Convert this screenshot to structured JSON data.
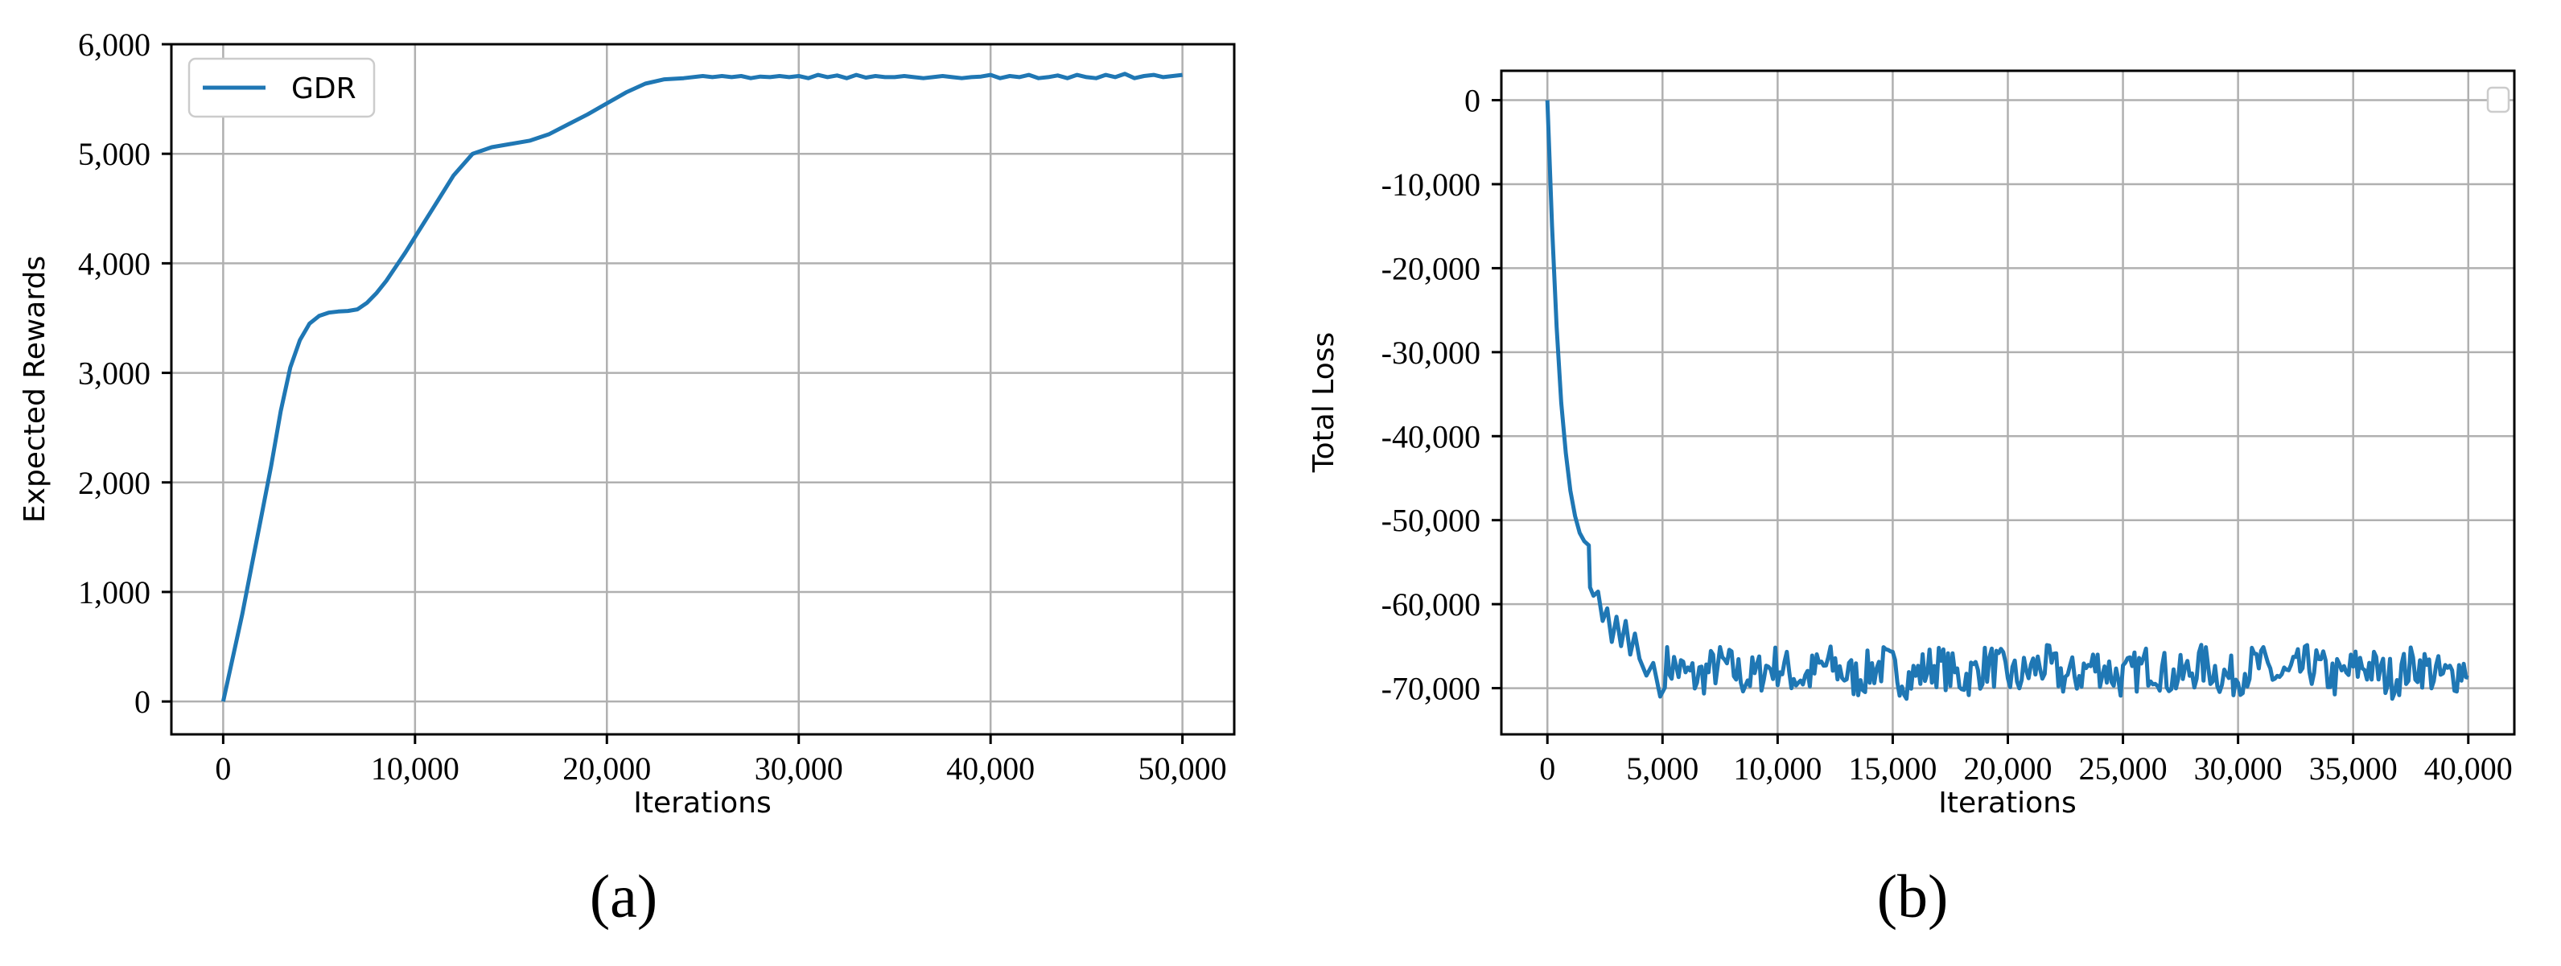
{
  "chart_data": [
    {
      "type": "line",
      "panel_label": "(a)",
      "xlabel": "Iterations",
      "ylabel": "Expected Rewards",
      "xlim": [
        -2700,
        52700
      ],
      "ylim": [
        -300,
        6000
      ],
      "xticks": [
        0,
        10000,
        20000,
        30000,
        40000,
        50000
      ],
      "xtick_labels": [
        "0",
        "10,000",
        "20,000",
        "30,000",
        "40,000",
        "50,000"
      ],
      "yticks": [
        0,
        1000,
        2000,
        3000,
        4000,
        5000,
        6000
      ],
      "ytick_labels": [
        "0",
        "1,000",
        "2,000",
        "3,000",
        "4,000",
        "5,000",
        "6,000"
      ],
      "grid": true,
      "legend": "top-left",
      "color": "#1f77b4",
      "series": [
        {
          "name": "GDR",
          "x": [
            0,
            500,
            1000,
            1500,
            2000,
            2500,
            3000,
            3500,
            4000,
            4500,
            5000,
            5500,
            6000,
            6500,
            7000,
            7500,
            8000,
            8500,
            9000,
            9500,
            10000,
            11000,
            12000,
            13000,
            14000,
            15000,
            16000,
            17000,
            18000,
            19000,
            20000,
            21000,
            22000,
            23000,
            24000,
            25000,
            25500,
            26000,
            26500,
            27000,
            27500,
            28000,
            28500,
            29000,
            29500,
            30000,
            30500,
            31000,
            31500,
            32000,
            32500,
            33000,
            33500,
            34000,
            34500,
            35000,
            35500,
            36000,
            36500,
            37000,
            37500,
            38000,
            38500,
            39000,
            39500,
            40000,
            40500,
            41000,
            41500,
            42000,
            42500,
            43000,
            43500,
            44000,
            44500,
            45000,
            45500,
            46000,
            46500,
            47000,
            47500,
            48000,
            48500,
            49000,
            49500,
            50000
          ],
          "y": [
            0,
            400,
            800,
            1250,
            1700,
            2150,
            2650,
            3050,
            3300,
            3450,
            3520,
            3550,
            3560,
            3565,
            3580,
            3640,
            3730,
            3840,
            3970,
            4100,
            4240,
            4520,
            4800,
            5000,
            5060,
            5090,
            5120,
            5180,
            5270,
            5360,
            5460,
            5560,
            5640,
            5680,
            5690,
            5710,
            5700,
            5710,
            5700,
            5710,
            5690,
            5705,
            5700,
            5710,
            5700,
            5710,
            5690,
            5720,
            5700,
            5715,
            5690,
            5720,
            5695,
            5710,
            5700,
            5700,
            5710,
            5700,
            5690,
            5700,
            5710,
            5700,
            5690,
            5700,
            5705,
            5720,
            5690,
            5710,
            5700,
            5720,
            5690,
            5700,
            5715,
            5690,
            5720,
            5700,
            5690,
            5720,
            5700,
            5730,
            5690,
            5710,
            5720,
            5700,
            5710,
            5720
          ]
        }
      ]
    },
    {
      "type": "line",
      "panel_label": "(b)",
      "xlabel": "Iterations",
      "ylabel": "Total Loss",
      "xlim": [
        -2000,
        42000
      ],
      "ylim": [
        -75500,
        3500
      ],
      "xticks": [
        0,
        5000,
        10000,
        15000,
        20000,
        25000,
        30000,
        35000,
        40000
      ],
      "xtick_labels": [
        "0",
        "5,000",
        "10,000",
        "15,000",
        "20,000",
        "25,000",
        "30,000",
        "35,000",
        "40,000"
      ],
      "yticks": [
        0,
        -10000,
        -20000,
        -30000,
        -40000,
        -50000,
        -60000,
        -70000
      ],
      "ytick_labels": [
        "0",
        "-10,000",
        "-20,000",
        "-30,000",
        "-40,000",
        "-50,000",
        "-60,000",
        "-70,000"
      ],
      "grid": true,
      "legend": "top-right (empty)",
      "color": "#1f77b4",
      "series": [
        {
          "x": [
            0,
            200,
            400,
            600,
            800,
            1000,
            1200,
            1400,
            1600,
            1800,
            1850,
            2000,
            2200,
            2400,
            2600,
            2800,
            3000,
            3200,
            3400,
            3600,
            3800,
            4000,
            4300,
            4600,
            4900
          ],
          "y": [
            0,
            -15000,
            -27000,
            -36000,
            -42000,
            -46500,
            -49500,
            -51500,
            -52500,
            -53000,
            -58000,
            -59000,
            -58500,
            -62000,
            -60500,
            -64500,
            -61500,
            -65000,
            -62000,
            -66000,
            -63500,
            -66500,
            -68500,
            -67000,
            -71000
          ]
        }
      ]
    }
  ]
}
